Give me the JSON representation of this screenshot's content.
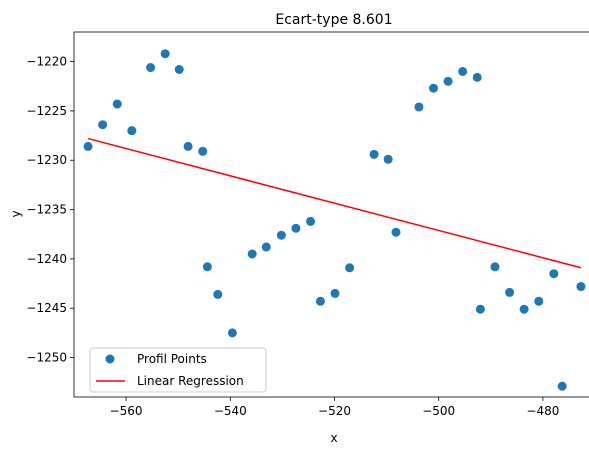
{
  "chart_data": {
    "type": "scatter",
    "title": "Ecart-type 8.601",
    "xlabel": "x",
    "ylabel": "y",
    "xlim": [
      -570,
      -470
    ],
    "ylim": [
      -1254.0,
      -1217.0
    ],
    "xticks": [
      -560,
      -540,
      -520,
      -500,
      -480
    ],
    "xtick_labels": [
      "−560",
      "−540",
      "−520",
      "−500",
      "−480"
    ],
    "yticks": [
      -1250,
      -1245,
      -1240,
      -1235,
      -1230,
      -1225,
      -1220
    ],
    "ytick_labels": [
      "−1250",
      "−1245",
      "−1240",
      "−1235",
      "−1230",
      "−1225",
      "−1220"
    ],
    "grid": false,
    "legend_position": "lower-left",
    "series": [
      {
        "name": "Profil Points",
        "kind": "scatter",
        "color": "#1f77b4",
        "points": [
          [
            -567.3,
            -1228.6
          ],
          [
            -564.5,
            -1226.4
          ],
          [
            -561.7,
            -1224.3
          ],
          [
            -558.9,
            -1227.0
          ],
          [
            -555.3,
            -1220.6
          ],
          [
            -552.5,
            -1219.2
          ],
          [
            -549.8,
            -1220.8
          ],
          [
            -548.1,
            -1228.6
          ],
          [
            -545.3,
            -1229.1
          ],
          [
            -544.4,
            -1240.8
          ],
          [
            -542.4,
            -1243.6
          ],
          [
            -539.6,
            -1247.5
          ],
          [
            -535.8,
            -1239.5
          ],
          [
            -533.1,
            -1238.8
          ],
          [
            -530.2,
            -1237.6
          ],
          [
            -527.4,
            -1236.9
          ],
          [
            -524.6,
            -1236.2
          ],
          [
            -522.7,
            -1244.3
          ],
          [
            -519.9,
            -1243.5
          ],
          [
            -517.1,
            -1240.9
          ],
          [
            -512.4,
            -1229.4
          ],
          [
            -509.7,
            -1229.9
          ],
          [
            -508.2,
            -1237.3
          ],
          [
            -503.8,
            -1224.6
          ],
          [
            -501.0,
            -1222.7
          ],
          [
            -498.2,
            -1222.0
          ],
          [
            -495.4,
            -1221.0
          ],
          [
            -492.6,
            -1221.6
          ],
          [
            -492.0,
            -1245.1
          ],
          [
            -489.2,
            -1240.8
          ],
          [
            -486.4,
            -1243.4
          ],
          [
            -483.6,
            -1245.1
          ],
          [
            -480.8,
            -1244.3
          ],
          [
            -477.9,
            -1241.5
          ],
          [
            -476.3,
            -1252.9
          ],
          [
            -472.7,
            -1242.8
          ]
        ]
      },
      {
        "name": "Linear Regression",
        "kind": "line",
        "color": "#ff0000",
        "points": [
          [
            -567.3,
            -1227.8
          ],
          [
            -472.7,
            -1240.9
          ]
        ]
      }
    ]
  }
}
